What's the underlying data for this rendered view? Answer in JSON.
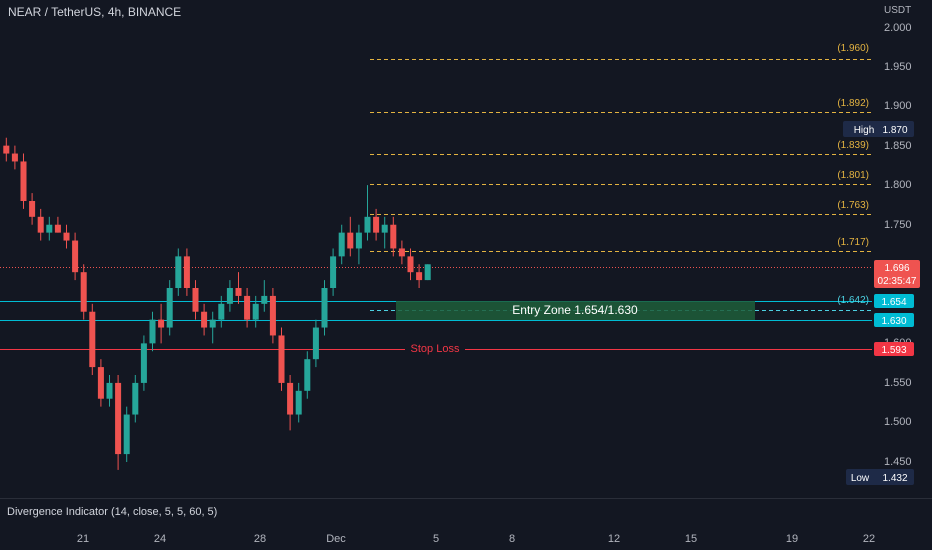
{
  "header": {
    "title": "NEAR / TetherUS, 4h, BINANCE",
    "axis_unit": "USDT"
  },
  "price_axis": {
    "ticks": [
      "2.000",
      "1.950",
      "1.900",
      "1.850",
      "1.800",
      "1.750",
      "1.600",
      "1.550",
      "1.500",
      "1.450"
    ]
  },
  "time_axis": {
    "labels": [
      "21",
      "24",
      "28",
      "Dec",
      "5",
      "8",
      "12",
      "15",
      "19",
      "22"
    ]
  },
  "fib_levels": [
    "(1.960)",
    "(1.892)",
    "(1.839)",
    "(1.801)",
    "(1.763)",
    "(1.717)",
    "(1.642)"
  ],
  "high": {
    "label": "High",
    "value": "1.870"
  },
  "low": {
    "label": "Low",
    "value": "1.432"
  },
  "current_price": {
    "value": "1.696",
    "countdown": "02:35:47"
  },
  "entry_zone": {
    "label": "Entry Zone   1.654/1.630",
    "upper": "1.654",
    "lower": "1.630"
  },
  "stop_loss": {
    "label": "Stop Loss",
    "value": "1.593"
  },
  "indicator": {
    "label": "Divergence Indicator (14, close, 5, 5, 60, 5)"
  },
  "colors": {
    "bg": "#131722",
    "up": "#26a69a",
    "down": "#ef5350",
    "fib": "#e3b341",
    "cyan": "#00bcd4",
    "stop": "#f23645",
    "zone": "#1e5e3a"
  },
  "chart_data": {
    "type": "candlestick",
    "symbol": "NEAR / TetherUS",
    "interval": "4h",
    "ylim": [
      1.42,
      2.01
    ],
    "candles_approx": [
      [
        1.85,
        1.86,
        1.83,
        1.84
      ],
      [
        1.84,
        1.85,
        1.82,
        1.83
      ],
      [
        1.83,
        1.84,
        1.77,
        1.78
      ],
      [
        1.78,
        1.79,
        1.75,
        1.76
      ],
      [
        1.76,
        1.77,
        1.73,
        1.74
      ],
      [
        1.74,
        1.76,
        1.73,
        1.75
      ],
      [
        1.75,
        1.76,
        1.74,
        1.74
      ],
      [
        1.74,
        1.75,
        1.72,
        1.73
      ],
      [
        1.73,
        1.74,
        1.68,
        1.69
      ],
      [
        1.69,
        1.7,
        1.63,
        1.64
      ],
      [
        1.64,
        1.65,
        1.56,
        1.57
      ],
      [
        1.57,
        1.58,
        1.52,
        1.53
      ],
      [
        1.53,
        1.56,
        1.52,
        1.55
      ],
      [
        1.55,
        1.56,
        1.44,
        1.46
      ],
      [
        1.46,
        1.52,
        1.45,
        1.51
      ],
      [
        1.51,
        1.56,
        1.5,
        1.55
      ],
      [
        1.55,
        1.61,
        1.54,
        1.6
      ],
      [
        1.6,
        1.64,
        1.59,
        1.63
      ],
      [
        1.63,
        1.65,
        1.6,
        1.62
      ],
      [
        1.62,
        1.68,
        1.61,
        1.67
      ],
      [
        1.67,
        1.72,
        1.66,
        1.71
      ],
      [
        1.71,
        1.72,
        1.66,
        1.67
      ],
      [
        1.67,
        1.68,
        1.63,
        1.64
      ],
      [
        1.64,
        1.65,
        1.61,
        1.62
      ],
      [
        1.62,
        1.64,
        1.6,
        1.63
      ],
      [
        1.63,
        1.66,
        1.62,
        1.65
      ],
      [
        1.65,
        1.68,
        1.64,
        1.67
      ],
      [
        1.67,
        1.69,
        1.65,
        1.66
      ],
      [
        1.66,
        1.67,
        1.62,
        1.63
      ],
      [
        1.63,
        1.66,
        1.62,
        1.65
      ],
      [
        1.65,
        1.68,
        1.64,
        1.66
      ],
      [
        1.66,
        1.67,
        1.6,
        1.61
      ],
      [
        1.61,
        1.62,
        1.54,
        1.55
      ],
      [
        1.55,
        1.56,
        1.49,
        1.51
      ],
      [
        1.51,
        1.55,
        1.5,
        1.54
      ],
      [
        1.54,
        1.59,
        1.53,
        1.58
      ],
      [
        1.58,
        1.63,
        1.57,
        1.62
      ],
      [
        1.62,
        1.68,
        1.61,
        1.67
      ],
      [
        1.67,
        1.72,
        1.66,
        1.71
      ],
      [
        1.71,
        1.75,
        1.7,
        1.74
      ],
      [
        1.74,
        1.76,
        1.71,
        1.72
      ],
      [
        1.72,
        1.75,
        1.7,
        1.74
      ],
      [
        1.74,
        1.8,
        1.73,
        1.76
      ],
      [
        1.76,
        1.77,
        1.73,
        1.74
      ],
      [
        1.74,
        1.76,
        1.72,
        1.75
      ],
      [
        1.75,
        1.76,
        1.71,
        1.72
      ],
      [
        1.72,
        1.73,
        1.7,
        1.71
      ],
      [
        1.71,
        1.72,
        1.68,
        1.69
      ],
      [
        1.69,
        1.7,
        1.67,
        1.68
      ],
      [
        1.68,
        1.7,
        1.68,
        1.7
      ]
    ]
  }
}
